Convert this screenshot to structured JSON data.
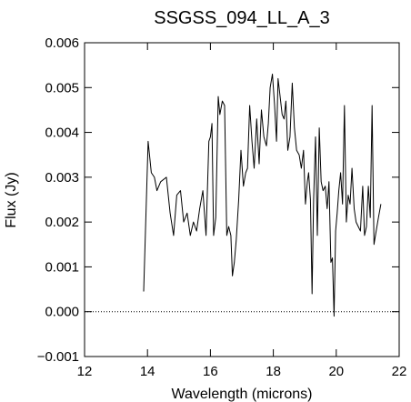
{
  "chart_data": {
    "type": "line",
    "title": "SSGSS_094_LL_A_3",
    "xlabel": "Wavelength (microns)",
    "ylabel": "Flux (Jy)",
    "xlim": [
      12,
      22
    ],
    "ylim": [
      -0.001,
      0.006
    ],
    "xticks": [
      12,
      14,
      16,
      18,
      20,
      22
    ],
    "xtick_labels": [
      "12",
      "14",
      "16",
      "18",
      "20",
      "22"
    ],
    "yticks": [
      -0.001,
      0.0,
      0.001,
      0.002,
      0.003,
      0.004,
      0.005,
      0.006
    ],
    "ytick_labels": [
      "−0.001",
      "0.000",
      "0.001",
      "0.002",
      "0.003",
      "0.004",
      "0.005",
      "0.006"
    ],
    "reference_line": {
      "y": 0.0,
      "style": "dotted"
    },
    "grid": false,
    "series": [
      {
        "color": "#000000",
        "x": [
          13.88,
          14.02,
          14.12,
          14.22,
          14.3,
          14.42,
          14.6,
          14.72,
          14.83,
          14.93,
          15.05,
          15.15,
          15.26,
          15.36,
          15.46,
          15.56,
          15.66,
          15.76,
          15.86,
          15.95,
          16.0,
          16.05,
          16.1,
          16.17,
          16.25,
          16.3,
          16.38,
          16.45,
          16.52,
          16.58,
          16.65,
          16.7,
          16.76,
          16.82,
          16.9,
          16.97,
          17.05,
          17.12,
          17.18,
          17.25,
          17.32,
          17.39,
          17.47,
          17.55,
          17.62,
          17.7,
          17.78,
          17.84,
          17.9,
          17.97,
          18.04,
          18.1,
          18.15,
          18.2,
          18.28,
          18.34,
          18.4,
          18.46,
          18.53,
          18.6,
          18.67,
          18.74,
          18.82,
          18.89,
          18.96,
          19.02,
          19.08,
          19.12,
          19.18,
          19.23,
          19.28,
          19.34,
          19.4,
          19.46,
          19.52,
          19.58,
          19.65,
          19.71,
          19.77,
          19.83,
          19.88,
          19.93,
          19.98,
          20.03,
          20.08,
          20.14,
          20.2,
          20.26,
          20.32,
          20.38,
          20.44,
          20.5,
          20.57,
          20.63,
          20.7,
          20.77,
          20.84,
          20.9,
          20.96,
          21.02,
          21.08,
          21.14,
          21.2,
          21.27,
          21.34,
          21.42
        ],
        "y": [
          0.00045,
          0.0038,
          0.0031,
          0.003,
          0.0027,
          0.0029,
          0.003,
          0.0022,
          0.0017,
          0.0026,
          0.0027,
          0.002,
          0.0022,
          0.0017,
          0.002,
          0.0018,
          0.0023,
          0.0027,
          0.0017,
          0.0038,
          0.0039,
          0.0042,
          0.0017,
          0.0021,
          0.0048,
          0.0044,
          0.0047,
          0.0046,
          0.0017,
          0.0019,
          0.0017,
          0.0008,
          0.0011,
          0.0016,
          0.0025,
          0.0036,
          0.0028,
          0.0031,
          0.0032,
          0.0046,
          0.0038,
          0.0032,
          0.0043,
          0.0033,
          0.0045,
          0.0039,
          0.0037,
          0.0042,
          0.005,
          0.0053,
          0.0046,
          0.0038,
          0.0052,
          0.0049,
          0.0044,
          0.0043,
          0.0047,
          0.0036,
          0.0039,
          0.0051,
          0.0041,
          0.0036,
          0.0035,
          0.0032,
          0.0036,
          0.0024,
          0.0029,
          0.0031,
          0.0025,
          0.0004,
          0.0025,
          0.0039,
          0.0017,
          0.0041,
          0.0029,
          0.0027,
          0.0028,
          0.0023,
          0.0029,
          0.0011,
          0.0012,
          -0.0001,
          0.0018,
          0.0022,
          0.0027,
          0.0031,
          0.0024,
          0.0046,
          0.002,
          0.0026,
          0.0024,
          0.0032,
          0.0023,
          0.002,
          0.0019,
          0.0018,
          0.0028,
          0.0017,
          0.0019,
          0.0028,
          0.0021,
          0.0046,
          0.0015,
          0.0018,
          0.0021,
          0.0024
        ]
      }
    ]
  }
}
